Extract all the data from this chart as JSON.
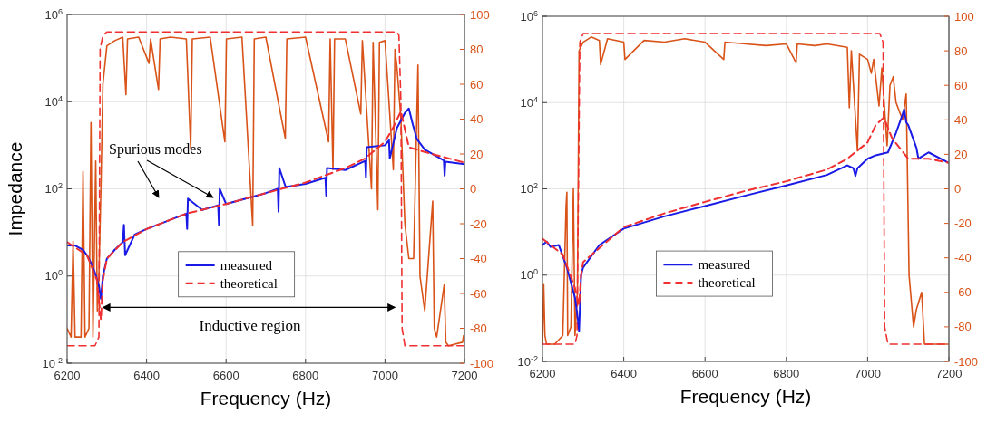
{
  "chart_data": [
    {
      "type": "line",
      "ylabel": "Impedance",
      "xlabel": "Frequency (Hz)",
      "log": "y",
      "grid": true,
      "legend": "bottom",
      "xlim": [
        6200,
        7200
      ],
      "xticks": [
        6200,
        6400,
        6600,
        6800,
        7000,
        7200
      ],
      "ylim": [
        0.01,
        1000000
      ],
      "yticks": [
        {
          "value": 0.01,
          "label": "10$^{-2}$"
        },
        {
          "value": 1,
          "label": "10$^{0}$"
        },
        {
          "value": 100,
          "label": "10$^{2}$"
        },
        {
          "value": 10000,
          "label": "10$^{4}$"
        },
        {
          "value": 1000000,
          "label": "10$^{6}$"
        }
      ],
      "y2lim": [
        -100,
        100
      ],
      "y2ticks": [
        -100,
        -80,
        -60,
        -40,
        -20,
        0,
        20,
        40,
        60,
        80,
        100
      ],
      "annotations": [
        "Spurious modes",
        "Inductive region"
      ],
      "series": [
        {
          "color": "#d95319",
          "axis": "y2",
          "line_style": "solid",
          "x": [
            6200,
            6210,
            6215,
            6220,
            6235,
            6240,
            6245,
            6255,
            6260,
            6265,
            6272,
            6276,
            6280,
            6285,
            6290,
            6300,
            6320,
            6340,
            6348,
            6352,
            6380,
            6406,
            6410,
            6430,
            6434,
            6460,
            6500,
            6511,
            6515,
            6560,
            6597,
            6601,
            6640,
            6667,
            6671,
            6700,
            6749,
            6753,
            6800,
            6858,
            6862,
            6869,
            6873,
            6900,
            6939,
            6943,
            6966,
            6970,
            6982,
            6986,
            7000,
            7021,
            7025,
            7030,
            7040,
            7050,
            7060,
            7072,
            7083,
            7088,
            7100,
            7120,
            7124,
            7130,
            7149,
            7153,
            7160,
            7195,
            7198,
            7200
          ],
          "values": [
            -80,
            -85,
            -30,
            -85,
            -85,
            10,
            -85,
            -80,
            38,
            -85,
            16,
            -70,
            -50,
            0,
            60,
            82,
            85,
            87,
            54,
            86,
            87,
            72,
            86,
            57,
            86,
            87,
            86,
            23,
            86,
            87,
            27,
            86,
            87,
            -21,
            86,
            87,
            29,
            86,
            87,
            27,
            86,
            11,
            86,
            86,
            43,
            85,
            0,
            84,
            -12,
            84,
            85,
            11,
            80,
            70,
            40,
            -20,
            -40,
            -40,
            71,
            -50,
            -70,
            -7,
            -80,
            -85,
            -55,
            -88,
            -90,
            -88,
            -84,
            -90
          ]
        },
        {
          "color": "#f03030",
          "axis": "y2",
          "line_style": "dashed",
          "x": [
            6200,
            6270,
            6280,
            6283,
            6290,
            6300,
            7030,
            7035,
            7040,
            7043,
            7050,
            7200
          ],
          "values": [
            -90,
            -90,
            -85,
            80,
            88,
            90,
            90,
            88,
            50,
            -80,
            -90,
            -90
          ]
        },
        {
          "name": "measured",
          "color": "#1a1ae6",
          "line_style": "solid",
          "x": [
            6200,
            6220,
            6240,
            6250,
            6260,
            6270,
            6280,
            6285,
            6290,
            6300,
            6320,
            6340,
            6343,
            6346,
            6370,
            6400,
            6450,
            6500,
            6502,
            6504,
            6540,
            6580,
            6582,
            6584,
            6600,
            6650,
            6700,
            6730,
            6732,
            6734,
            6750,
            6800,
            6850,
            6852,
            6854,
            6900,
            6950,
            6952,
            6954,
            7000,
            7010,
            7012,
            7030,
            7050,
            7060,
            7070,
            7080,
            7100,
            7148,
            7150,
            7152,
            7200
          ],
          "values": [
            5,
            5,
            4,
            3,
            2,
            1.2,
            0.6,
            0.3,
            1,
            2.5,
            4,
            6,
            15,
            3,
            9,
            12,
            18,
            27,
            12,
            60,
            33,
            42,
            15,
            100,
            45,
            60,
            80,
            100,
            30,
            300,
            110,
            130,
            180,
            70,
            300,
            270,
            440,
            180,
            900,
            1000,
            1300,
            500,
            2500,
            5500,
            7000,
            3000,
            1400,
            800,
            450,
            200,
            420,
            370
          ]
        },
        {
          "name": "theoretical",
          "color": "#f03030",
          "line_style": "dashed",
          "x": [
            6200,
            6250,
            6275,
            6285,
            6290,
            6300,
            6340,
            6400,
            6500,
            6600,
            6700,
            6800,
            6900,
            6950,
            7000,
            7020,
            7040,
            7060,
            7100,
            7200
          ],
          "values": [
            6,
            3,
            0.8,
            0.1,
            0.8,
            2.5,
            6,
            12,
            27,
            45,
            80,
            140,
            300,
            500,
            1200,
            2500,
            6000,
            900,
            700,
            400
          ]
        }
      ]
    },
    {
      "type": "line",
      "xlabel": "Frequency (Hz)",
      "log": "y",
      "grid": true,
      "legend": "bottom",
      "xlim": [
        6200,
        7200
      ],
      "xticks": [
        6200,
        6400,
        6600,
        6800,
        7000,
        7200
      ],
      "ylim": [
        0.01,
        1000000
      ],
      "yticks": [
        {
          "value": 0.01,
          "label": "10$^{-2}$"
        },
        {
          "value": 1,
          "label": "10$^{0}$"
        },
        {
          "value": 100,
          "label": "10$^{2}$"
        },
        {
          "value": 10000,
          "label": "10$^{4}$"
        },
        {
          "value": 1000000,
          "label": "10$^{6}$"
        }
      ],
      "y2lim": [
        -100,
        100
      ],
      "y2ticks": [
        -100,
        -80,
        -60,
        -40,
        -20,
        0,
        20,
        40,
        60,
        80,
        100
      ],
      "series": [
        {
          "color": "#d95319",
          "axis": "y2",
          "line_style": "solid",
          "x": [
            6200,
            6203,
            6206,
            6210,
            6230,
            6250,
            6258,
            6260,
            6262,
            6270,
            6276,
            6280,
            6286,
            6290,
            6300,
            6320,
            6340,
            6343,
            6360,
            6400,
            6403,
            6450,
            6500,
            6550,
            6600,
            6646,
            6649,
            6700,
            6750,
            6800,
            6824,
            6827,
            6870,
            6900,
            6950,
            6955,
            6960,
            6975,
            6980,
            7000,
            7009,
            7015,
            7028,
            7035,
            7048,
            7055,
            7063,
            7070,
            7086,
            7095,
            7102,
            7113,
            7120,
            7133,
            7140,
            7160,
            7200
          ],
          "values": [
            -90,
            -55,
            -85,
            -90,
            -90,
            -85,
            -10,
            -2,
            -85,
            -80,
            0,
            -85,
            -60,
            80,
            85,
            88,
            86,
            72,
            87,
            85,
            75,
            86,
            85,
            87,
            85,
            75,
            85,
            84,
            83,
            84,
            73,
            84,
            83,
            84,
            82,
            47,
            80,
            22,
            78,
            75,
            67,
            75,
            48,
            70,
            25,
            60,
            65,
            50,
            40,
            55,
            -50,
            -80,
            -70,
            -60,
            -90,
            -90,
            -90
          ]
        },
        {
          "color": "#f03030",
          "axis": "y2",
          "line_style": "dashed",
          "x": [
            6200,
            6280,
            6285,
            6292,
            6300,
            7030,
            7038,
            7042,
            7050,
            7200
          ],
          "values": [
            -90,
            -90,
            -85,
            85,
            90,
            90,
            85,
            -80,
            -90,
            -90
          ]
        },
        {
          "name": "measured",
          "color": "#1a1ae6",
          "line_style": "solid",
          "x": [
            6200,
            6210,
            6220,
            6240,
            6260,
            6280,
            6288,
            6290,
            6295,
            6300,
            6340,
            6400,
            6500,
            6600,
            6700,
            6800,
            6900,
            6950,
            6965,
            6970,
            6975,
            7000,
            7020,
            7050,
            7070,
            7085,
            7090,
            7095,
            7100,
            7120,
            7125,
            7150,
            7200
          ],
          "values": [
            5,
            6,
            4.5,
            5,
            1.5,
            0.3,
            0.08,
            0.05,
            1,
            1.5,
            5,
            12,
            23,
            40,
            70,
            120,
            210,
            350,
            300,
            200,
            300,
            500,
            600,
            700,
            2000,
            5000,
            7000,
            3500,
            3000,
            900,
            500,
            700,
            400
          ]
        },
        {
          "name": "theoretical",
          "color": "#f03030",
          "line_style": "dashed",
          "x": [
            6200,
            6250,
            6280,
            6290,
            6295,
            6300,
            6400,
            6500,
            6600,
            6700,
            6800,
            6900,
            6950,
            7000,
            7020,
            7040,
            7060,
            7100,
            7150,
            7200
          ],
          "values": [
            7,
            3,
            0.5,
            0.2,
            1,
            2,
            13,
            27,
            50,
            90,
            150,
            280,
            500,
            1200,
            3000,
            4500,
            1500,
            500,
            500,
            400
          ]
        }
      ]
    }
  ]
}
